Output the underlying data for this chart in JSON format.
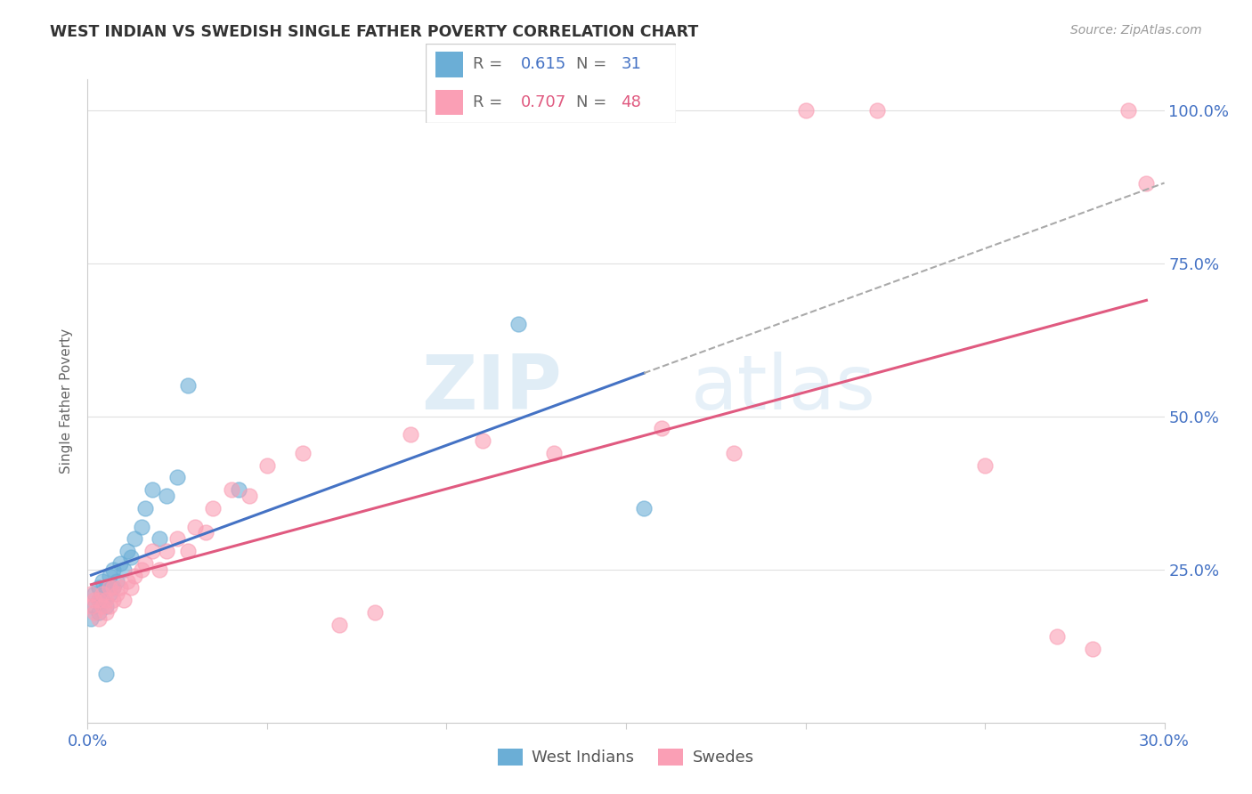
{
  "title": "WEST INDIAN VS SWEDISH SINGLE FATHER POVERTY CORRELATION CHART",
  "source": "Source: ZipAtlas.com",
  "ylabel": "Single Father Poverty",
  "xmin": 0.0,
  "xmax": 0.3,
  "ymin": 0.0,
  "ymax": 1.05,
  "ytick_values": [
    0.0,
    0.25,
    0.5,
    0.75,
    1.0
  ],
  "ytick_labels_right": [
    "",
    "25.0%",
    "50.0%",
    "75.0%",
    "100.0%"
  ],
  "xtick_values": [
    0.0,
    0.05,
    0.1,
    0.15,
    0.2,
    0.25,
    0.3
  ],
  "west_indians_x": [
    0.001,
    0.002,
    0.002,
    0.003,
    0.003,
    0.003,
    0.004,
    0.004,
    0.005,
    0.005,
    0.006,
    0.006,
    0.007,
    0.007,
    0.008,
    0.009,
    0.01,
    0.011,
    0.012,
    0.013,
    0.015,
    0.016,
    0.018,
    0.02,
    0.022,
    0.025,
    0.028,
    0.042,
    0.12,
    0.155,
    0.005
  ],
  "west_indians_y": [
    0.17,
    0.19,
    0.21,
    0.18,
    0.2,
    0.22,
    0.2,
    0.23,
    0.19,
    0.22,
    0.21,
    0.24,
    0.22,
    0.25,
    0.23,
    0.26,
    0.25,
    0.28,
    0.27,
    0.3,
    0.32,
    0.35,
    0.38,
    0.3,
    0.37,
    0.4,
    0.55,
    0.38,
    0.65,
    0.35,
    0.08
  ],
  "swedes_x": [
    0.001,
    0.001,
    0.002,
    0.002,
    0.003,
    0.003,
    0.004,
    0.004,
    0.005,
    0.005,
    0.006,
    0.006,
    0.007,
    0.007,
    0.008,
    0.009,
    0.01,
    0.011,
    0.012,
    0.013,
    0.015,
    0.016,
    0.018,
    0.02,
    0.022,
    0.025,
    0.028,
    0.03,
    0.033,
    0.035,
    0.04,
    0.045,
    0.05,
    0.06,
    0.07,
    0.08,
    0.09,
    0.11,
    0.13,
    0.16,
    0.18,
    0.2,
    0.22,
    0.25,
    0.27,
    0.28,
    0.29,
    0.295
  ],
  "swedes_y": [
    0.19,
    0.21,
    0.18,
    0.2,
    0.17,
    0.2,
    0.19,
    0.21,
    0.18,
    0.2,
    0.19,
    0.22,
    0.2,
    0.22,
    0.21,
    0.22,
    0.2,
    0.23,
    0.22,
    0.24,
    0.25,
    0.26,
    0.28,
    0.25,
    0.28,
    0.3,
    0.28,
    0.32,
    0.31,
    0.35,
    0.38,
    0.37,
    0.42,
    0.44,
    0.16,
    0.18,
    0.47,
    0.46,
    0.44,
    0.48,
    0.44,
    1.0,
    1.0,
    0.42,
    0.14,
    0.12,
    1.0,
    0.88
  ],
  "blue_color": "#6baed6",
  "pink_color": "#fa9fb5",
  "blue_line_color": "#4472c4",
  "pink_line_color": "#e05a80",
  "dashed_line_color": "#aaaaaa",
  "legend_blue_r": "0.615",
  "legend_blue_n": "31",
  "legend_pink_r": "0.707",
  "legend_pink_n": "48",
  "watermark_zip": "ZIP",
  "watermark_atlas": "atlas",
  "background_color": "#ffffff",
  "grid_color": "#e0e0e0",
  "blue_r_color": "#4472c4",
  "blue_n_color": "#4472c4",
  "pink_r_color": "#e05a80",
  "pink_n_color": "#e05a80"
}
